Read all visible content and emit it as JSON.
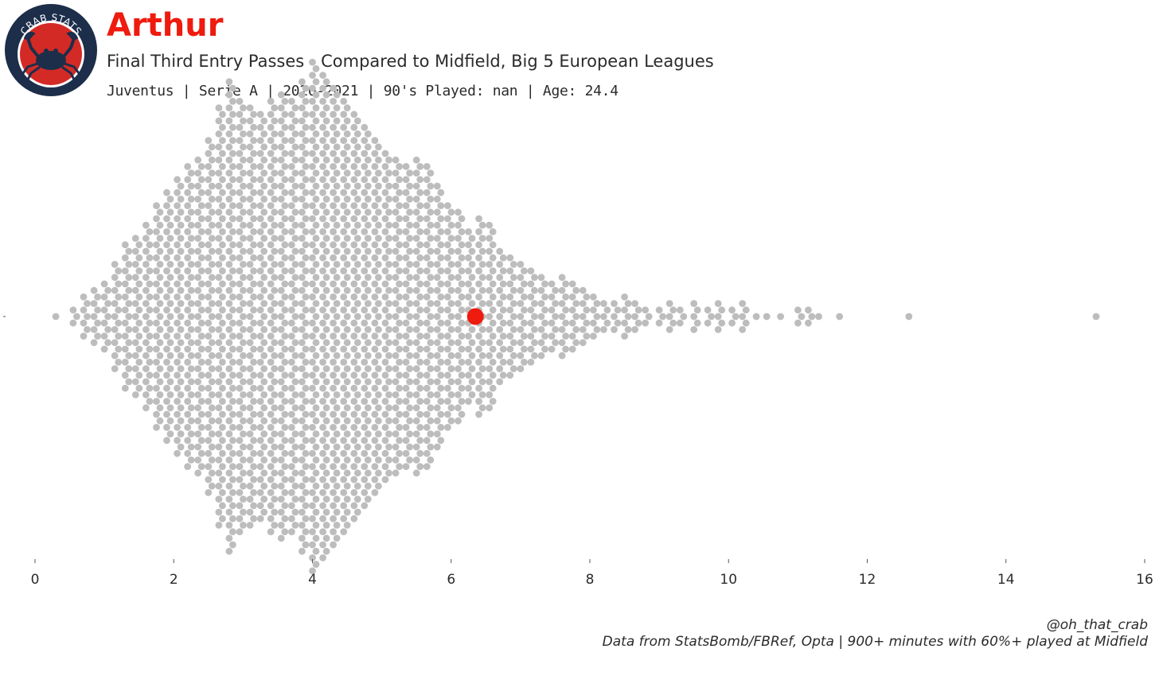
{
  "header": {
    "player_name": "Arthur",
    "subtitle": "Final Third Entry Passes - Compared to Midfield, Big 5 European Leagues",
    "info_line": "Juventus  | Serie A | 2020-2021 | 90's Played: nan | Age: 24.4",
    "logo_text": "CRAB STATS"
  },
  "footer": {
    "handle": "@oh_that_crab",
    "source": "Data from StatsBomb/FBRef, Opta | 900+ minutes with 60%+ played at Midfield"
  },
  "colors": {
    "highlight": "#ee1b0e",
    "population": "#bdbdbd",
    "logo_navy": "#1c2e4a",
    "logo_red": "#d42a26",
    "text": "#2b2b2b"
  },
  "chart_data": {
    "type": "scatter",
    "title": "Final Third Entry Passes - Compared to Midfield, Big 5 European Leagues",
    "xlim": [
      0,
      16
    ],
    "xticks": [
      0,
      2,
      4,
      6,
      8,
      10,
      12,
      14,
      16
    ],
    "xlabel": "",
    "ylabel": "",
    "grid": false,
    "highlight": {
      "label": "Arthur",
      "x": 6.35
    },
    "population_outliers": [
      0.3,
      11.6,
      12.6,
      15.3
    ],
    "population_bins": [
      {
        "x": 0.55,
        "count": 3
      },
      {
        "x": 0.7,
        "count": 7
      },
      {
        "x": 0.85,
        "count": 9
      },
      {
        "x": 1.0,
        "count": 11
      },
      {
        "x": 1.15,
        "count": 17
      },
      {
        "x": 1.3,
        "count": 23
      },
      {
        "x": 1.45,
        "count": 25
      },
      {
        "x": 1.6,
        "count": 29
      },
      {
        "x": 1.75,
        "count": 35
      },
      {
        "x": 1.9,
        "count": 39
      },
      {
        "x": 2.05,
        "count": 43
      },
      {
        "x": 2.2,
        "count": 47
      },
      {
        "x": 2.35,
        "count": 49
      },
      {
        "x": 2.5,
        "count": 55
      },
      {
        "x": 2.65,
        "count": 65
      },
      {
        "x": 2.8,
        "count": 73
      },
      {
        "x": 2.95,
        "count": 67
      },
      {
        "x": 3.1,
        "count": 65
      },
      {
        "x": 3.25,
        "count": 63
      },
      {
        "x": 3.4,
        "count": 67
      },
      {
        "x": 3.55,
        "count": 69
      },
      {
        "x": 3.7,
        "count": 67
      },
      {
        "x": 3.85,
        "count": 73
      },
      {
        "x": 4.0,
        "count": 79
      },
      {
        "x": 4.15,
        "count": 75
      },
      {
        "x": 4.3,
        "count": 71
      },
      {
        "x": 4.45,
        "count": 67
      },
      {
        "x": 4.6,
        "count": 63
      },
      {
        "x": 4.75,
        "count": 59
      },
      {
        "x": 4.9,
        "count": 55
      },
      {
        "x": 5.05,
        "count": 51
      },
      {
        "x": 5.2,
        "count": 49
      },
      {
        "x": 5.35,
        "count": 47
      },
      {
        "x": 5.5,
        "count": 49
      },
      {
        "x": 5.65,
        "count": 47
      },
      {
        "x": 5.8,
        "count": 41
      },
      {
        "x": 5.95,
        "count": 35
      },
      {
        "x": 6.1,
        "count": 33
      },
      {
        "x": 6.25,
        "count": 27
      },
      {
        "x": 6.4,
        "count": 31
      },
      {
        "x": 6.55,
        "count": 29
      },
      {
        "x": 6.7,
        "count": 21
      },
      {
        "x": 6.85,
        "count": 19
      },
      {
        "x": 7.0,
        "count": 17
      },
      {
        "x": 7.15,
        "count": 15
      },
      {
        "x": 7.3,
        "count": 13
      },
      {
        "x": 7.45,
        "count": 11
      },
      {
        "x": 7.6,
        "count": 13
      },
      {
        "x": 7.75,
        "count": 11
      },
      {
        "x": 7.9,
        "count": 9
      },
      {
        "x": 8.05,
        "count": 7
      },
      {
        "x": 8.2,
        "count": 5
      },
      {
        "x": 8.35,
        "count": 5
      },
      {
        "x": 8.5,
        "count": 7
      },
      {
        "x": 8.65,
        "count": 5
      },
      {
        "x": 8.8,
        "count": 3
      },
      {
        "x": 9.0,
        "count": 3
      },
      {
        "x": 9.15,
        "count": 5
      },
      {
        "x": 9.3,
        "count": 3
      },
      {
        "x": 9.5,
        "count": 5
      },
      {
        "x": 9.7,
        "count": 3
      },
      {
        "x": 9.85,
        "count": 5
      },
      {
        "x": 10.05,
        "count": 3
      },
      {
        "x": 10.2,
        "count": 5
      },
      {
        "x": 10.4,
        "count": 1
      },
      {
        "x": 10.55,
        "count": 1
      },
      {
        "x": 10.75,
        "count": 1
      },
      {
        "x": 11.0,
        "count": 3
      },
      {
        "x": 11.15,
        "count": 3
      },
      {
        "x": 11.3,
        "count": 1
      }
    ]
  }
}
